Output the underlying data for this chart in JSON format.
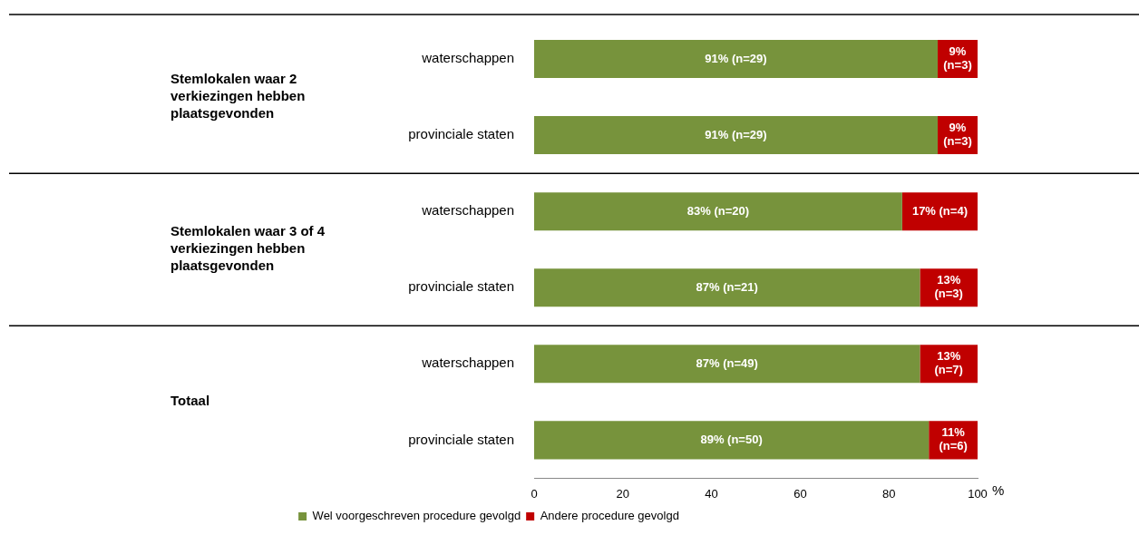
{
  "chart_data": {
    "type": "bar",
    "orientation": "horizontal",
    "stacked": true,
    "categories": [
      "waterschappen",
      "provinciale staten",
      "waterschappen",
      "provinciale staten",
      "waterschappen",
      "provinciale staten"
    ],
    "series": [
      {
        "name": "Wel voorgeschreven procedure gevolgd",
        "color": "#77933c",
        "values": [
          91,
          91,
          83,
          87,
          87,
          89
        ],
        "value_labels": [
          "91% (n=29)",
          "91% (n=29)",
          "83% (n=20)",
          "87% (n=21)",
          "87% (n=49)",
          "89% (n=50)"
        ]
      },
      {
        "name": "Andere procedure gevolgd",
        "color": "#c00000",
        "values": [
          9,
          9,
          17,
          13,
          13,
          11
        ],
        "value_labels": [
          "9% (n=3)",
          "9% (n=3)",
          "17% (n=4)",
          "13% (n=3)",
          "13% (n=7)",
          "11% (n=6)"
        ]
      }
    ],
    "xlim": [
      0,
      100
    ],
    "xticks": [
      0,
      20,
      40,
      60,
      80,
      100
    ],
    "xlabel": "%",
    "legend": "bottom",
    "annotations": [
      "Stemlokalen waar 2 verkiezingen hebben plaatsgevonden",
      "Stemlokalen waar 3 of 4 verkiezingen hebben plaatsgevonden",
      "Totaal"
    ]
  }
}
